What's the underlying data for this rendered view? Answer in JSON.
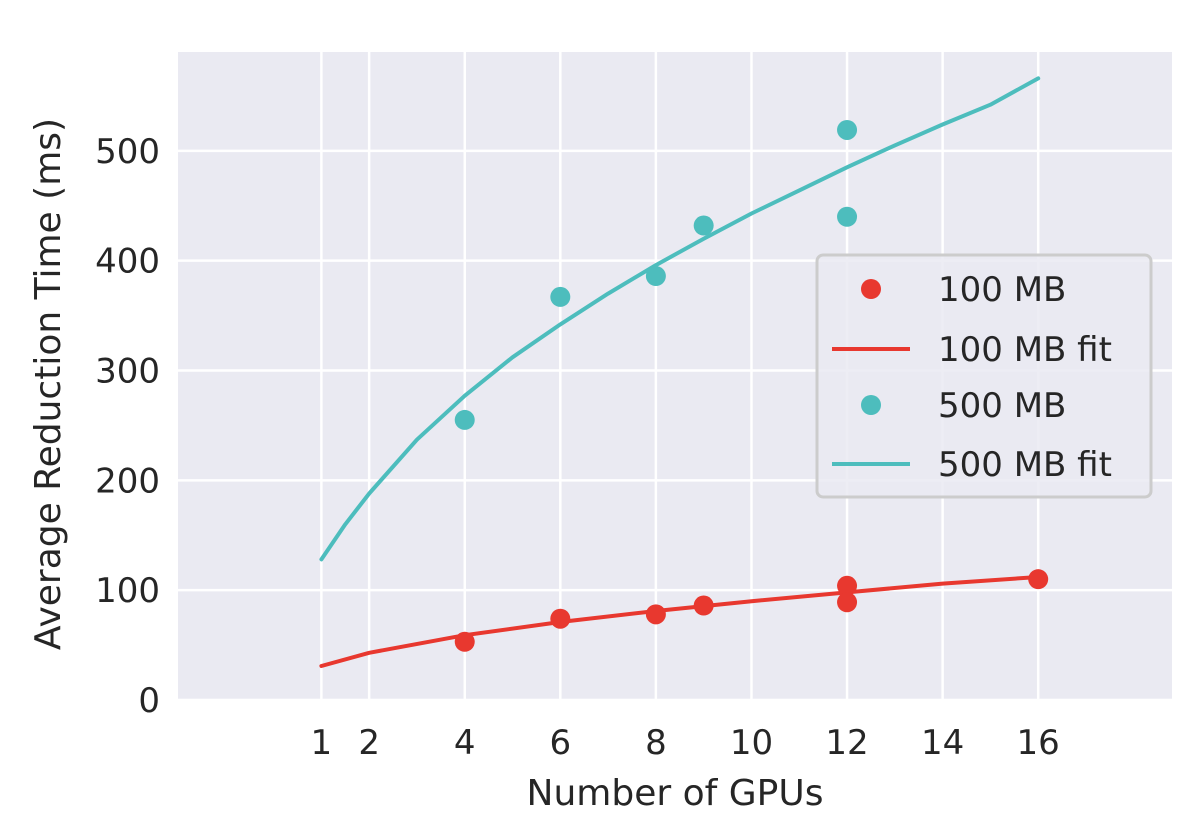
{
  "chart_data": {
    "type": "scatter",
    "xlabel": "Number of GPUs",
    "ylabel": "Average Reduction Time (ms)",
    "xlim": [
      -2,
      18.8
    ],
    "ylim": [
      0,
      590
    ],
    "x_ticks": [
      1,
      2,
      4,
      6,
      8,
      10,
      12,
      14,
      16
    ],
    "y_ticks": [
      0,
      100,
      200,
      300,
      400,
      500
    ],
    "grid": true,
    "background": "#eaeaf2",
    "legend_position": "center-right",
    "series": [
      {
        "name": "100 MB",
        "kind": "points",
        "color": "#e8382f",
        "points": [
          [
            4,
            53
          ],
          [
            6,
            74
          ],
          [
            8,
            78
          ],
          [
            9,
            86
          ],
          [
            12,
            104
          ],
          [
            12,
            89
          ],
          [
            16,
            110
          ]
        ]
      },
      {
        "name": "100 MB fit",
        "kind": "line",
        "color": "#e8382f",
        "points": [
          [
            1,
            31
          ],
          [
            2,
            43
          ],
          [
            4,
            59
          ],
          [
            6,
            71
          ],
          [
            8,
            81
          ],
          [
            10,
            90
          ],
          [
            12,
            98
          ],
          [
            14,
            106
          ],
          [
            16,
            112
          ]
        ]
      },
      {
        "name": "500 MB",
        "kind": "points",
        "color": "#4dbdbd",
        "points": [
          [
            4,
            255
          ],
          [
            6,
            367
          ],
          [
            8,
            386
          ],
          [
            9,
            432
          ],
          [
            12,
            519
          ],
          [
            12,
            440
          ]
        ]
      },
      {
        "name": "500 MB fit",
        "kind": "line",
        "color": "#4dbdbd",
        "points": [
          [
            1,
            128
          ],
          [
            1.5,
            160
          ],
          [
            2,
            188
          ],
          [
            3,
            237
          ],
          [
            4,
            277
          ],
          [
            5,
            312
          ],
          [
            6,
            342
          ],
          [
            7,
            370
          ],
          [
            8,
            396
          ],
          [
            9,
            420
          ],
          [
            10,
            443
          ],
          [
            11,
            464
          ],
          [
            12,
            485
          ],
          [
            13,
            505
          ],
          [
            14,
            524
          ],
          [
            15,
            542
          ],
          [
            16,
            566
          ]
        ]
      }
    ]
  }
}
